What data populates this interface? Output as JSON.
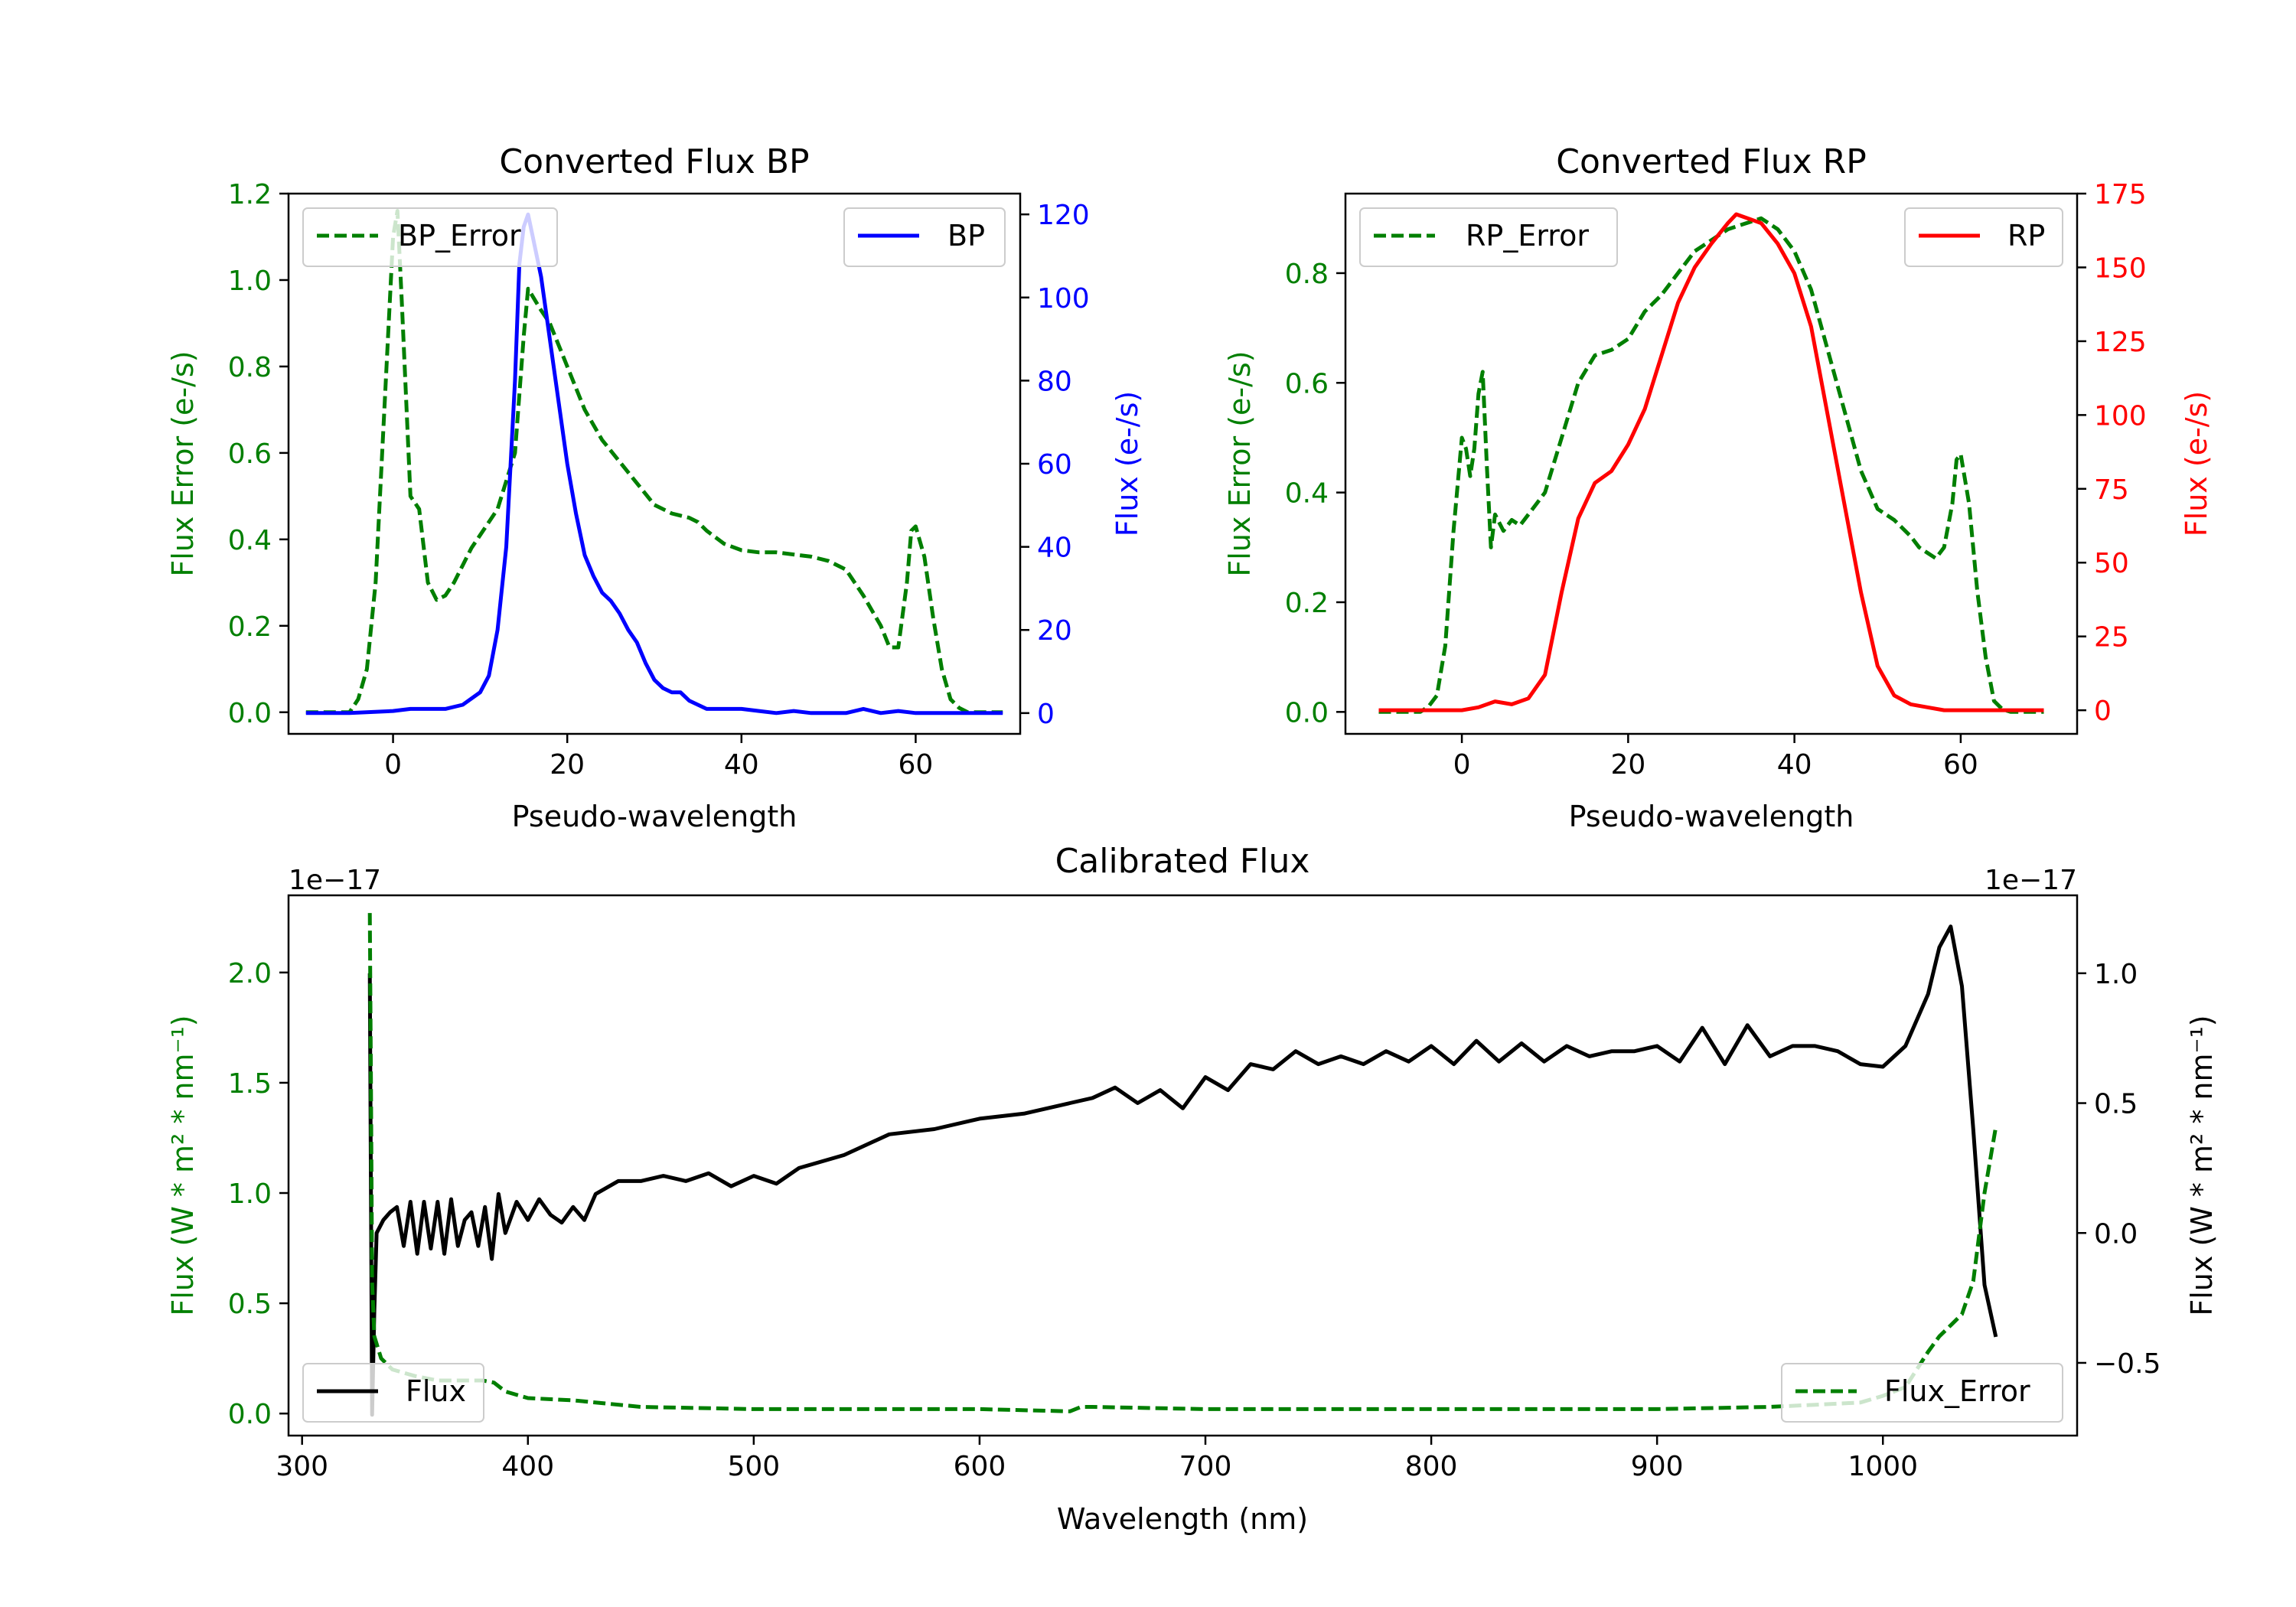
{
  "colors": {
    "error": "#007f00",
    "bp": "#0000ff",
    "rp": "#ff0000",
    "flux": "#000000"
  },
  "chart_data": [
    {
      "type": "line",
      "title": "Converted Flux BP",
      "xlabel": "Pseudo-wavelength",
      "ylabel_left": "Flux Error (e-/s)",
      "ylabel_right": "Flux (e-/s)",
      "xlim": [
        -12,
        72
      ],
      "ylim_left": [
        -0.05,
        1.2
      ],
      "ylim_right": [
        -5,
        125
      ],
      "xticks": [
        "0",
        "20",
        "40",
        "60"
      ],
      "yticks_left": [
        "0.0",
        "0.2",
        "0.4",
        "0.6",
        "0.8",
        "1.0",
        "1.2"
      ],
      "yticks_right": [
        "0",
        "20",
        "40",
        "60",
        "80",
        "100",
        "120"
      ],
      "legend_left": "BP_Error",
      "legend_right": "BP",
      "series": [
        {
          "name": "BP_Error",
          "axis": "left",
          "style": "dashed",
          "color": "#007f00",
          "x": [
            -10,
            -5,
            -4,
            -3,
            -2,
            -1,
            0,
            0.5,
            1,
            2,
            3,
            4,
            5,
            6,
            7,
            8,
            9,
            10,
            12,
            14,
            15,
            15.5,
            17,
            18,
            20,
            22,
            24,
            26,
            28,
            30,
            32,
            34,
            35,
            36,
            38,
            40,
            42,
            44,
            46,
            48,
            50,
            52,
            54,
            56,
            57,
            58,
            59,
            59.5,
            60,
            61,
            62,
            63,
            64,
            65,
            66,
            67,
            68,
            69,
            70
          ],
          "y": [
            0.0,
            0.0,
            0.03,
            0.1,
            0.3,
            0.7,
            1.1,
            1.16,
            0.95,
            0.5,
            0.47,
            0.3,
            0.26,
            0.27,
            0.3,
            0.34,
            0.38,
            0.41,
            0.47,
            0.6,
            0.87,
            0.98,
            0.93,
            0.9,
            0.8,
            0.7,
            0.63,
            0.58,
            0.53,
            0.48,
            0.46,
            0.45,
            0.44,
            0.42,
            0.39,
            0.375,
            0.37,
            0.37,
            0.365,
            0.36,
            0.35,
            0.33,
            0.27,
            0.2,
            0.15,
            0.15,
            0.3,
            0.42,
            0.43,
            0.36,
            0.22,
            0.1,
            0.03,
            0.01,
            0.0,
            0.0,
            0.0,
            0.0,
            0.0
          ]
        },
        {
          "name": "BP",
          "axis": "right",
          "style": "solid",
          "color": "#0000ff",
          "x": [
            -10,
            -5,
            0,
            2,
            4,
            6,
            8,
            10,
            11,
            12,
            13,
            14,
            14.5,
            15,
            15.5,
            16,
            17,
            18,
            19,
            20,
            21,
            22,
            23,
            24,
            25,
            26,
            27,
            28,
            29,
            30,
            31,
            32,
            33,
            34,
            35,
            36,
            38,
            40,
            42,
            44,
            46,
            48,
            50,
            52,
            54,
            56,
            58,
            60,
            62,
            64,
            66,
            68,
            70
          ],
          "y": [
            0,
            0,
            0.5,
            1,
            1,
            1,
            2,
            5,
            9,
            20,
            40,
            80,
            108,
            117,
            120,
            115,
            105,
            90,
            75,
            60,
            48,
            38,
            33,
            29,
            27,
            24,
            20,
            17,
            12,
            8,
            6,
            5,
            5,
            3,
            2,
            1,
            1,
            1,
            0.5,
            0,
            0.5,
            0,
            0,
            0,
            1,
            0,
            0.5,
            0,
            0,
            0,
            0,
            0,
            0
          ]
        }
      ]
    },
    {
      "type": "line",
      "title": "Converted Flux RP",
      "xlabel": "Pseudo-wavelength",
      "ylabel_left": "Flux Error (e-/s)",
      "ylabel_right": "Flux (e-/s)",
      "xlim": [
        -14,
        74
      ],
      "ylim_left": [
        -0.04,
        0.945
      ],
      "ylim_right": [
        -8,
        175
      ],
      "xticks": [
        "0",
        "20",
        "40",
        "60"
      ],
      "yticks_left": [
        "0.0",
        "0.2",
        "0.4",
        "0.6",
        "0.8"
      ],
      "yticks_right": [
        "0",
        "25",
        "50",
        "75",
        "100",
        "125",
        "150",
        "175"
      ],
      "legend_left": "RP_Error",
      "legend_right": "RP",
      "series": [
        {
          "name": "RP_Error",
          "axis": "left",
          "style": "dashed",
          "color": "#007f00",
          "x": [
            -10,
            -5,
            -4,
            -3,
            -2,
            -1,
            0,
            0.5,
            1,
            1.5,
            2,
            2.5,
            3,
            3.5,
            4,
            5,
            6,
            7,
            8,
            9,
            10,
            12,
            14,
            16,
            18,
            20,
            22,
            24,
            26,
            28,
            30,
            32,
            34,
            36,
            38,
            40,
            42,
            44,
            46,
            48,
            50,
            52,
            54,
            55,
            56,
            57,
            58,
            59,
            59.5,
            60,
            61,
            62,
            63,
            64,
            65,
            66,
            68,
            70
          ],
          "y": [
            0.0,
            0.0,
            0.01,
            0.03,
            0.12,
            0.33,
            0.5,
            0.48,
            0.43,
            0.48,
            0.58,
            0.62,
            0.45,
            0.3,
            0.36,
            0.33,
            0.35,
            0.34,
            0.36,
            0.38,
            0.4,
            0.5,
            0.6,
            0.65,
            0.66,
            0.68,
            0.73,
            0.76,
            0.8,
            0.84,
            0.86,
            0.88,
            0.89,
            0.9,
            0.88,
            0.84,
            0.77,
            0.66,
            0.55,
            0.44,
            0.37,
            0.35,
            0.32,
            0.3,
            0.29,
            0.28,
            0.3,
            0.38,
            0.46,
            0.47,
            0.38,
            0.22,
            0.1,
            0.02,
            0.005,
            0.0,
            0.0,
            0.0
          ]
        },
        {
          "name": "RP",
          "axis": "right",
          "style": "solid",
          "color": "#ff0000",
          "x": [
            -10,
            -5,
            0,
            2,
            4,
            6,
            8,
            10,
            12,
            14,
            16,
            18,
            20,
            22,
            24,
            26,
            28,
            30,
            32,
            33,
            34,
            35,
            36,
            38,
            40,
            42,
            44,
            46,
            48,
            50,
            52,
            54,
            56,
            58,
            60,
            62,
            64,
            66,
            68,
            70
          ],
          "y": [
            0,
            0,
            0,
            1,
            3,
            2,
            4,
            12,
            40,
            65,
            77,
            81,
            90,
            102,
            120,
            138,
            150,
            158,
            165,
            168,
            167,
            166,
            165,
            158,
            148,
            130,
            100,
            70,
            40,
            15,
            5,
            2,
            1,
            0,
            0,
            0,
            0,
            0,
            0,
            0
          ]
        }
      ]
    },
    {
      "type": "line",
      "title": "Calibrated Flux",
      "xlabel": "Wavelength (nm)",
      "ylabel_left": "Flux (W * m² * nm⁻¹)",
      "ylabel_right": "Flux (W * m² * nm⁻¹)",
      "offset_left": "1e−17",
      "offset_right": "1e−17",
      "xlim": [
        294,
        1086
      ],
      "ylim_left": [
        -0.1,
        2.35
      ],
      "ylim_right": [
        -0.78,
        1.3
      ],
      "xticks": [
        "300",
        "400",
        "500",
        "600",
        "700",
        "800",
        "900",
        "1000"
      ],
      "yticks_left": [
        "0.0",
        "0.5",
        "1.0",
        "1.5",
        "2.0"
      ],
      "yticks_right": [
        "−0.5",
        "0.0",
        "0.5",
        "1.0"
      ],
      "legend_left": "Flux",
      "legend_right": "Flux_Error",
      "series": [
        {
          "name": "Flux",
          "axis": "right",
          "style": "solid",
          "color": "#000000",
          "x": [
            330,
            331,
            332,
            333,
            336,
            339,
            342,
            345,
            348,
            351,
            354,
            357,
            360,
            363,
            366,
            369,
            372,
            375,
            378,
            381,
            384,
            387,
            390,
            395,
            400,
            405,
            410,
            415,
            420,
            425,
            430,
            440,
            450,
            460,
            470,
            480,
            490,
            500,
            510,
            520,
            540,
            560,
            580,
            600,
            620,
            640,
            650,
            660,
            670,
            680,
            690,
            700,
            710,
            720,
            730,
            740,
            750,
            760,
            770,
            780,
            790,
            800,
            810,
            820,
            830,
            840,
            850,
            860,
            870,
            880,
            890,
            900,
            910,
            920,
            930,
            940,
            950,
            960,
            970,
            980,
            990,
            1000,
            1010,
            1020,
            1025,
            1030,
            1035,
            1040,
            1045,
            1050
          ],
          "y": [
            1.0,
            -0.7,
            -0.3,
            0.0,
            0.05,
            0.08,
            0.1,
            -0.05,
            0.12,
            -0.08,
            0.12,
            -0.06,
            0.12,
            -0.08,
            0.13,
            -0.05,
            0.05,
            0.08,
            -0.05,
            0.1,
            -0.1,
            0.15,
            0.0,
            0.12,
            0.05,
            0.13,
            0.07,
            0.04,
            0.1,
            0.05,
            0.15,
            0.2,
            0.2,
            0.22,
            0.2,
            0.23,
            0.18,
            0.22,
            0.19,
            0.25,
            0.3,
            0.38,
            0.4,
            0.44,
            0.46,
            0.5,
            0.52,
            0.56,
            0.5,
            0.55,
            0.48,
            0.6,
            0.55,
            0.65,
            0.63,
            0.7,
            0.65,
            0.68,
            0.65,
            0.7,
            0.66,
            0.72,
            0.65,
            0.74,
            0.66,
            0.73,
            0.66,
            0.72,
            0.68,
            0.7,
            0.7,
            0.72,
            0.66,
            0.79,
            0.65,
            0.8,
            0.68,
            0.72,
            0.72,
            0.7,
            0.65,
            0.64,
            0.72,
            0.92,
            1.1,
            1.18,
            0.95,
            0.4,
            -0.2,
            -0.4
          ]
        },
        {
          "name": "Flux_Error",
          "axis": "left",
          "style": "dashed",
          "color": "#007f00",
          "x": [
            330,
            330.5,
            331,
            332,
            335,
            340,
            350,
            360,
            370,
            380,
            385,
            390,
            400,
            420,
            450,
            500,
            550,
            600,
            640,
            645,
            650,
            700,
            800,
            900,
            950,
            970,
            990,
            1000,
            1010,
            1015,
            1020,
            1025,
            1030,
            1035,
            1040,
            1045,
            1050
          ],
          "y": [
            2.27,
            1.5,
            0.6,
            0.35,
            0.25,
            0.2,
            0.17,
            0.15,
            0.15,
            0.15,
            0.14,
            0.1,
            0.07,
            0.06,
            0.03,
            0.02,
            0.02,
            0.02,
            0.01,
            0.03,
            0.03,
            0.02,
            0.02,
            0.02,
            0.03,
            0.04,
            0.05,
            0.08,
            0.12,
            0.2,
            0.28,
            0.35,
            0.4,
            0.45,
            0.6,
            1.0,
            1.3
          ]
        }
      ]
    }
  ]
}
